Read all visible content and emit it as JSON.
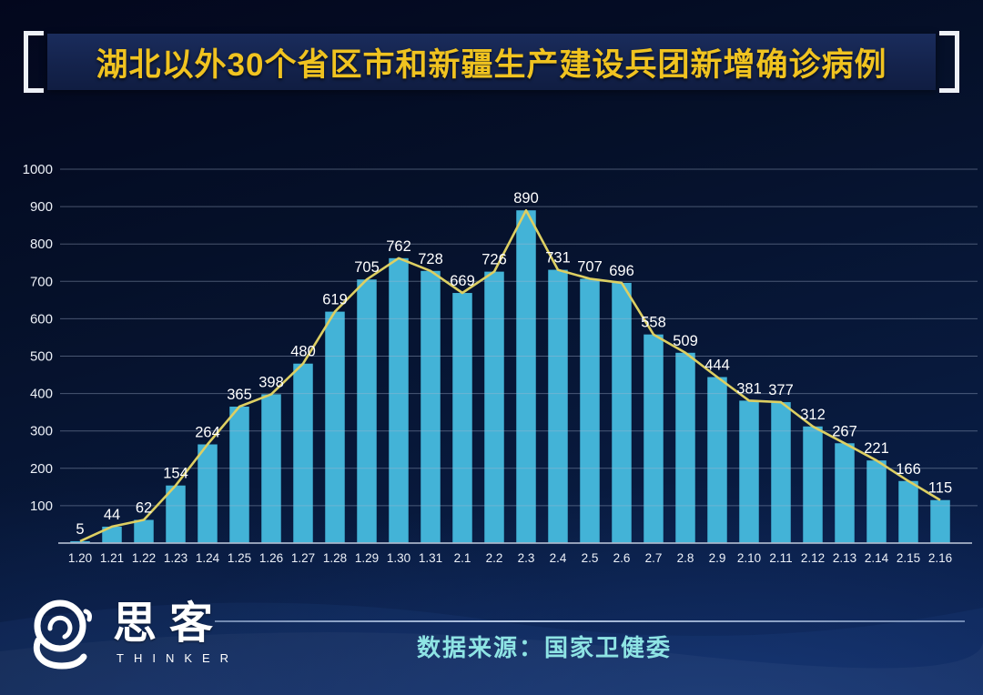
{
  "title": "湖北以外30个省区市和新疆生产建设兵团新增确诊病例",
  "footer": {
    "source_label": "数据来源：国家卫健委",
    "logo_cn": "思客",
    "logo_en": "THINKER"
  },
  "colors": {
    "bar": "#43b3d7",
    "line": "#ddcf62",
    "grid": "rgba(166,180,208,0.42)",
    "axis_line": "rgba(172,182,202,0.85)",
    "axis_text": "#edf1f8",
    "value_text": "#ffffff",
    "title_text": "#f0c320",
    "source_text": "#8ee4e4"
  },
  "chart_data": {
    "type": "bar",
    "title": "湖北以外30个省区市和新疆生产建设兵团新增确诊病例",
    "categories": [
      "1.20",
      "1.21",
      "1.22",
      "1.23",
      "1.24",
      "1.25",
      "1.26",
      "1.27",
      "1.28",
      "1.29",
      "1.30",
      "1.31",
      "2.1",
      "2.2",
      "2.3",
      "2.4",
      "2.5",
      "2.6",
      "2.7",
      "2.8",
      "2.9",
      "2.10",
      "2.11",
      "2.12",
      "2.13",
      "2.14",
      "2.15",
      "2.16"
    ],
    "values": [
      5,
      44,
      62,
      154,
      264,
      365,
      398,
      480,
      619,
      705,
      762,
      728,
      669,
      726,
      890,
      731,
      707,
      696,
      558,
      509,
      444,
      381,
      377,
      312,
      267,
      221,
      166,
      115
    ],
    "yticks": [
      100,
      200,
      300,
      400,
      500,
      600,
      700,
      800,
      900,
      1000
    ],
    "ylim": [
      0,
      1000
    ],
    "xlabel": "",
    "ylabel": "",
    "grid": true,
    "legend": false,
    "overlay_line": true,
    "source": "国家卫健委"
  }
}
